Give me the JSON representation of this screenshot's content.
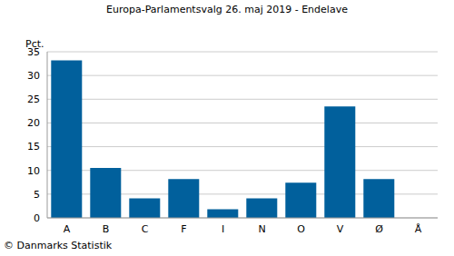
{
  "chart_data": {
    "type": "bar",
    "title": "Europa-Parlamentsvalg 26. maj 2019 - Endelave",
    "y_label": "Pct.",
    "annotation": "© Danmarks Statistik",
    "categories": [
      "A",
      "B",
      "C",
      "F",
      "I",
      "N",
      "O",
      "V",
      "Ø",
      "Å"
    ],
    "values": [
      33.2,
      10.5,
      4.1,
      8.2,
      1.8,
      4.1,
      7.4,
      23.5,
      8.2,
      0
    ],
    "color": "#01609c",
    "ylim": [
      0,
      35
    ],
    "yticks": [
      0,
      5,
      10,
      15,
      20,
      25,
      30,
      35
    ],
    "grid": true
  }
}
